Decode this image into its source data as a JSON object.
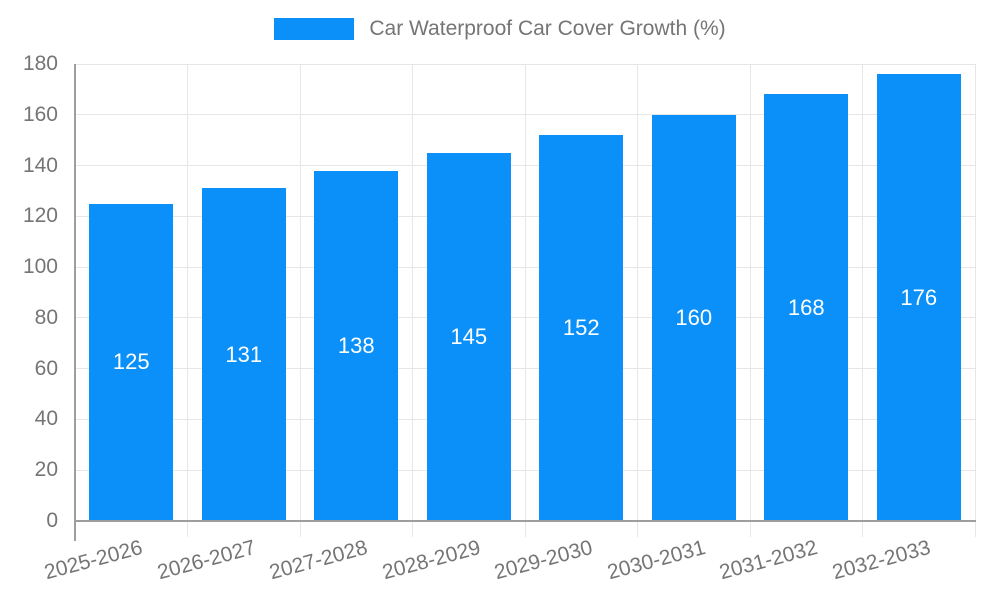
{
  "chart_data": {
    "type": "bar",
    "title": "Car Waterproof Car Cover Growth (%)",
    "categories": [
      "2025-2026",
      "2026-2027",
      "2027-2028",
      "2028-2029",
      "2029-2030",
      "2030-2031",
      "2031-2032",
      "2032-2033"
    ],
    "values": [
      125,
      131,
      138,
      145,
      152,
      160,
      168,
      176
    ],
    "xlabel": "",
    "ylabel": "",
    "ylim": [
      0,
      180
    ],
    "yticks": [
      0,
      20,
      40,
      60,
      80,
      100,
      120,
      140,
      160,
      180
    ],
    "grid": true,
    "legend_position": "top-center",
    "value_labels_shown": true,
    "x_label_rotation_deg": -15,
    "colors": {
      "bar": "#0a90f8",
      "value_label": "#ffffff",
      "axis_text": "#757575",
      "axis_line": "#9e9e9e",
      "gridline": "#e6e6e6",
      "tick": "#d9d9d9",
      "background": "#ffffff"
    }
  }
}
